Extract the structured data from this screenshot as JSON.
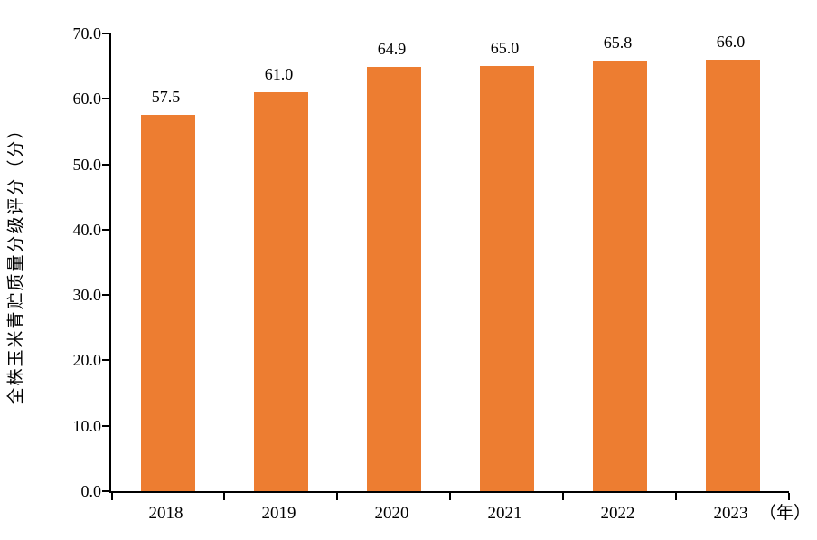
{
  "chart_data": {
    "type": "bar",
    "title": "",
    "categories": [
      "2018",
      "2019",
      "2020",
      "2021",
      "2022",
      "2023"
    ],
    "values": [
      57.5,
      61.0,
      64.9,
      65.0,
      65.8,
      66.0
    ],
    "value_labels": [
      "57.5",
      "61.0",
      "64.9",
      "65.0",
      "65.8",
      "66.0"
    ],
    "ylabel": "全株玉米青贮质量分级评分（分）",
    "xlabel": "",
    "x_unit_label": "（年）",
    "ylim": [
      0,
      70
    ],
    "ytick_step": 10,
    "ytick_labels": [
      "0.0",
      "10.0",
      "20.0",
      "30.0",
      "40.0",
      "50.0",
      "60.0",
      "70.0"
    ],
    "grid": false,
    "legend_position": "none",
    "bar_color": "#ED7D31",
    "axis_color": "#000000",
    "text_color": "#000000"
  }
}
